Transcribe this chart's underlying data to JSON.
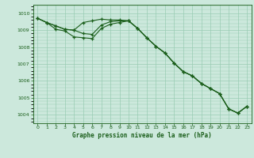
{
  "title": "Graphe pression niveau de la mer (hPa)",
  "bg_color": "#cce8dc",
  "grid_color": "#99ccb3",
  "line_color": "#1a5e1a",
  "ylim": [
    1003.5,
    1010.5
  ],
  "yticks": [
    1004,
    1005,
    1006,
    1007,
    1008,
    1009,
    1010
  ],
  "xlim": [
    -0.5,
    23.5
  ],
  "xticks": [
    0,
    1,
    2,
    3,
    4,
    5,
    6,
    7,
    8,
    9,
    10,
    11,
    12,
    13,
    14,
    15,
    16,
    17,
    18,
    19,
    20,
    21,
    22,
    23
  ],
  "series1": [
    1009.7,
    1009.45,
    1009.25,
    1009.05,
    1009.0,
    1009.45,
    1009.55,
    1009.65,
    1009.6,
    1009.6,
    1009.55,
    1009.1,
    1008.55,
    1008.05,
    1007.65,
    1007.05,
    1006.55,
    1006.3,
    1005.85,
    1005.55,
    1005.25,
    1004.35,
    1004.1,
    1004.5
  ],
  "series2": [
    1009.7,
    1009.45,
    1009.25,
    1009.05,
    1009.0,
    1008.8,
    1008.75,
    1009.3,
    1009.5,
    1009.55,
    1009.55,
    1009.1,
    1008.55,
    1008.05,
    1007.65,
    1007.05,
    1006.55,
    1006.3,
    1005.85,
    1005.55,
    1005.25,
    1004.35,
    1004.1,
    1004.5
  ],
  "series3": [
    1009.7,
    1009.45,
    1009.05,
    1008.95,
    1008.6,
    1008.55,
    1008.5,
    1009.1,
    1009.35,
    1009.45,
    1009.55,
    1009.1,
    1008.55,
    1008.05,
    1007.65,
    1007.05,
    1006.55,
    1006.3,
    1005.85,
    1005.55,
    1005.25,
    1004.35,
    1004.1,
    1004.5
  ]
}
